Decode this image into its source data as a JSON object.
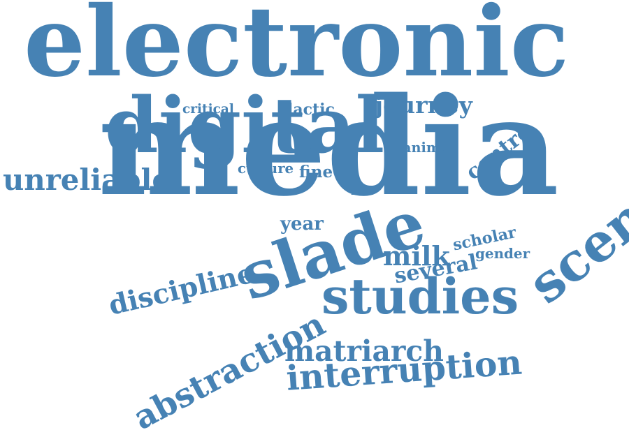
{
  "style": {
    "word_color": "#4682b4",
    "background": "#ffffff"
  },
  "words": [
    {
      "text": "electronic",
      "rank": 1
    },
    {
      "text": "media",
      "rank": 2
    },
    {
      "text": "digital",
      "rank": 3
    },
    {
      "text": "studies",
      "rank": 4
    },
    {
      "text": "slade",
      "rank": 5
    },
    {
      "text": "scemfa",
      "rank": 6
    },
    {
      "text": "abstraction",
      "rank": 7
    },
    {
      "text": "interruption",
      "rank": 8
    },
    {
      "text": "discipline",
      "rank": 9
    },
    {
      "text": "unreliable",
      "rank": 10
    },
    {
      "text": "matriarch",
      "rank": 11
    },
    {
      "text": "milk",
      "rank": 12
    },
    {
      "text": "journey",
      "rank": 13
    },
    {
      "text": "centre",
      "rank": 14
    },
    {
      "text": "several",
      "rank": 15
    },
    {
      "text": "year",
      "rank": 16
    },
    {
      "text": "scholar",
      "rank": 17
    },
    {
      "text": "gender",
      "rank": 18
    },
    {
      "text": "critical",
      "rank": 19
    },
    {
      "text": "lactic",
      "rank": 20
    },
    {
      "text": "culture",
      "rank": 21
    },
    {
      "text": "fine",
      "rank": 22
    },
    {
      "text": "animal",
      "rank": 23
    },
    {
      "text": "food",
      "rank": 24
    }
  ]
}
